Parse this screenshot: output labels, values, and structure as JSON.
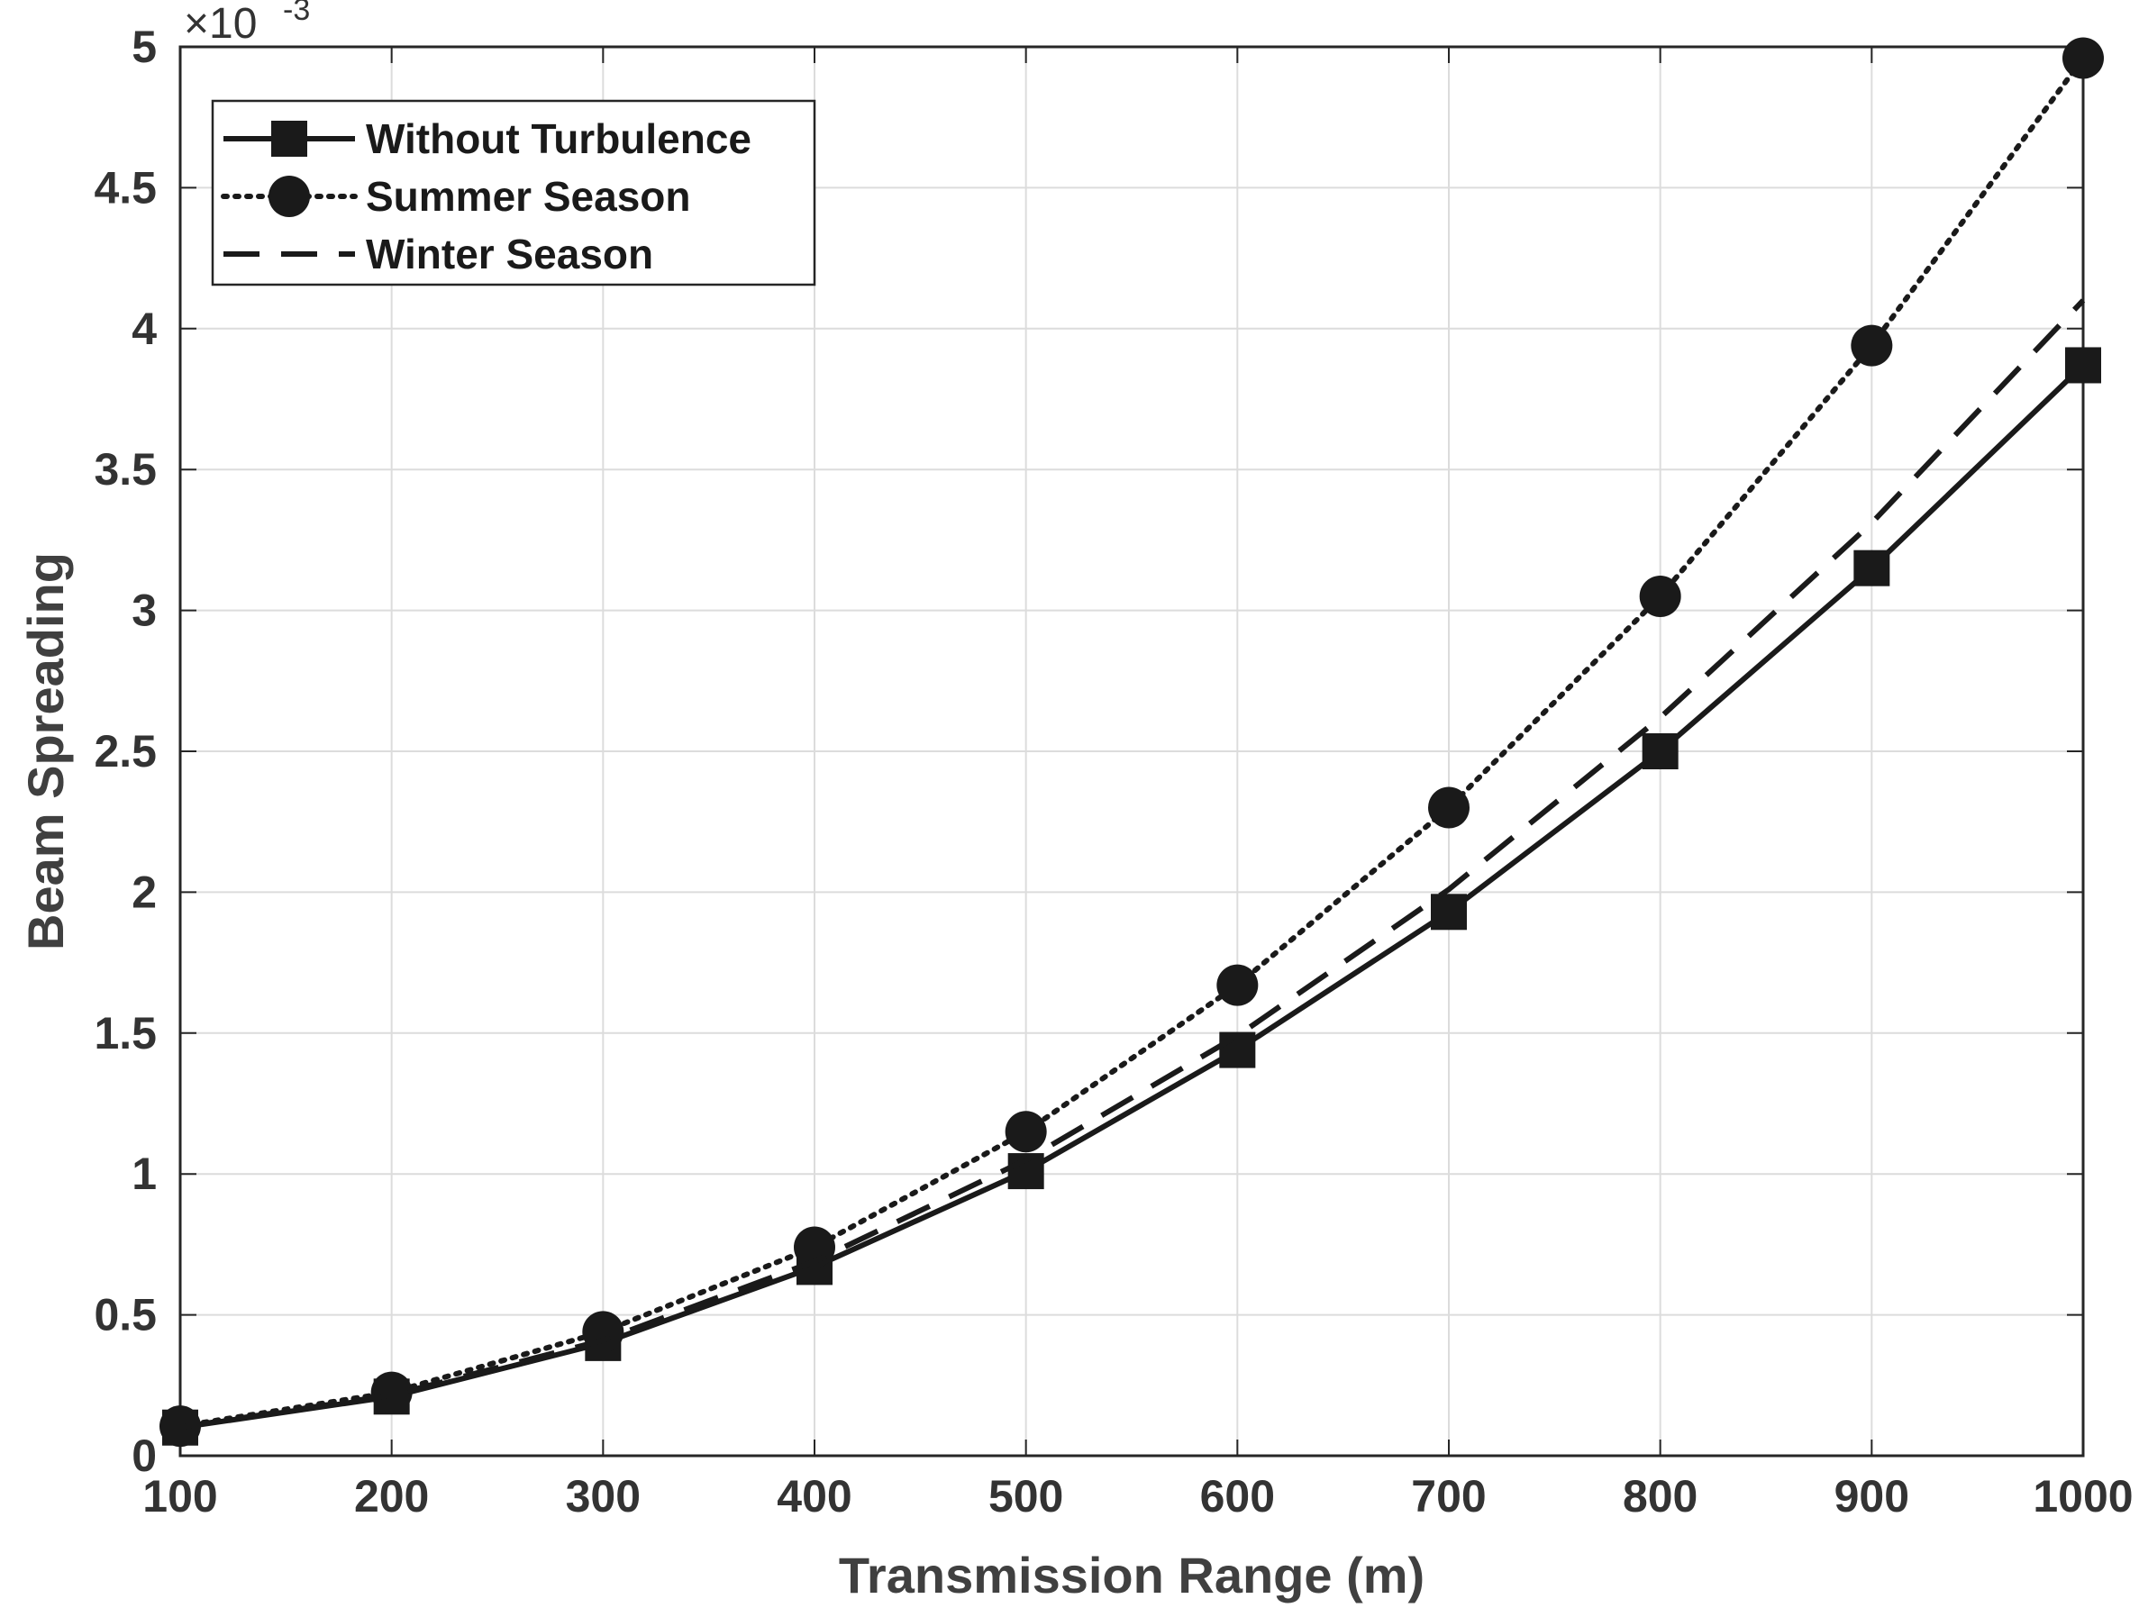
{
  "chart_data": {
    "type": "line",
    "title": "",
    "xlabel": "Transmission Range (m)",
    "ylabel": "Beam Spreading",
    "x": [
      100,
      200,
      300,
      400,
      500,
      600,
      700,
      800,
      900,
      1000
    ],
    "xlim": [
      100,
      1000
    ],
    "ylim": [
      0,
      0.005
    ],
    "xticks": [
      "100",
      "200",
      "300",
      "400",
      "500",
      "600",
      "700",
      "800",
      "900",
      "1000"
    ],
    "yticks": [
      "0",
      "0.5",
      "1",
      "1.5",
      "2",
      "2.5",
      "3",
      "3.5",
      "4",
      "4.5",
      "5"
    ],
    "y_exponent_base": "×10",
    "y_exponent_power": "-3",
    "grid": true,
    "legend_position": "top-left",
    "series": [
      {
        "name": "Without Turbulence",
        "values": [
          0.0001,
          0.00021,
          0.0004,
          0.00067,
          0.00101,
          0.00144,
          0.00193,
          0.0025,
          0.00315,
          0.00387
        ],
        "line_style": "solid",
        "marker": "square",
        "color": "#1a1a1a"
      },
      {
        "name": "Summer Season",
        "values": [
          0.000105,
          0.000225,
          0.00044,
          0.00074,
          0.00115,
          0.00167,
          0.0023,
          0.00305,
          0.00394,
          0.00496
        ],
        "line_style": "dotted",
        "marker": "circle",
        "color": "#1a1a1a"
      },
      {
        "name": "Winter Season",
        "values": [
          0.000101,
          0.000215,
          0.00041,
          0.00069,
          0.00105,
          0.00149,
          0.00201,
          0.00262,
          0.00331,
          0.0041
        ],
        "line_style": "dashed",
        "marker": "none",
        "color": "#1a1a1a"
      }
    ]
  }
}
